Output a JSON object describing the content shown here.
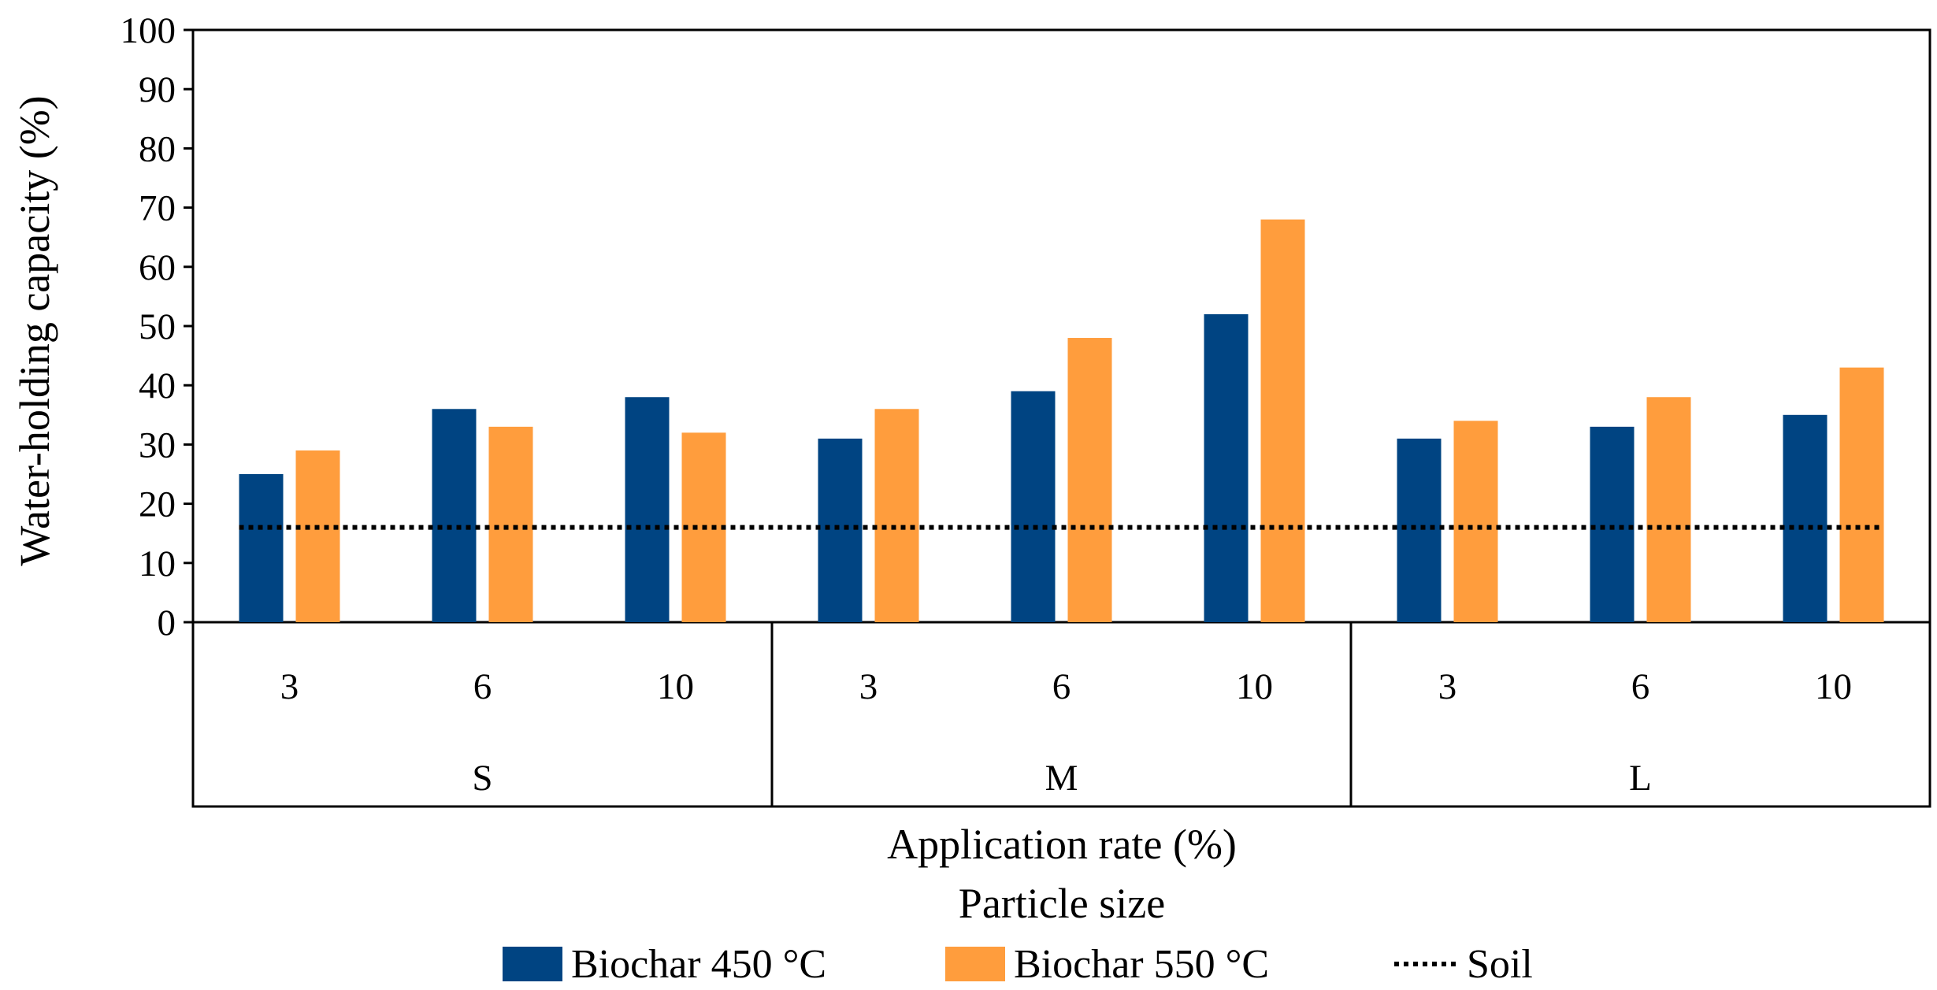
{
  "chart_data": {
    "type": "bar",
    "title": "",
    "ylabel": "Water-holding capacity (%)",
    "xlabel_line1": "Application rate (%)",
    "xlabel_line2": "Particle size",
    "ylim": [
      0,
      100
    ],
    "ytick_step": 10,
    "yticks": [
      "0",
      "10",
      "20",
      "30",
      "40",
      "50",
      "60",
      "70",
      "80",
      "90",
      "100"
    ],
    "grid": false,
    "groups": [
      {
        "label": "S",
        "rates": [
          "3",
          "6",
          "10"
        ]
      },
      {
        "label": "M",
        "rates": [
          "3",
          "6",
          "10"
        ]
      },
      {
        "label": "L",
        "rates": [
          "3",
          "6",
          "10"
        ]
      }
    ],
    "series": [
      {
        "name": "Biochar 450 °C",
        "color": "#004482",
        "values": [
          25,
          36,
          38,
          31,
          39,
          52,
          31,
          33,
          35
        ]
      },
      {
        "name": "Biochar 550 °C",
        "color": "#FF9D3D",
        "values": [
          29,
          33,
          32,
          36,
          48,
          68,
          34,
          38,
          43
        ]
      }
    ],
    "reference_line": {
      "name": "Soil",
      "value": 16,
      "style": "dotted",
      "color": "#000000"
    },
    "legend_position": "bottom"
  }
}
